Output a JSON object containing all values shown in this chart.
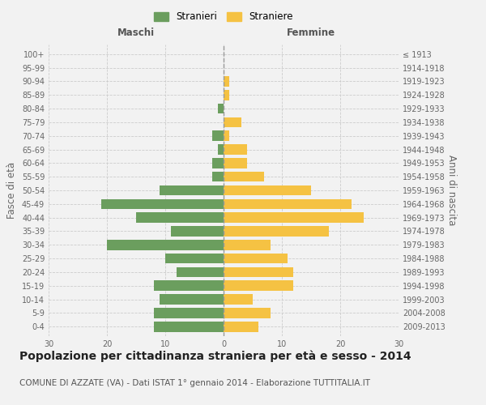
{
  "age_groups": [
    "0-4",
    "5-9",
    "10-14",
    "15-19",
    "20-24",
    "25-29",
    "30-34",
    "35-39",
    "40-44",
    "45-49",
    "50-54",
    "55-59",
    "60-64",
    "65-69",
    "70-74",
    "75-79",
    "80-84",
    "85-89",
    "90-94",
    "95-99",
    "100+"
  ],
  "birth_years": [
    "2009-2013",
    "2004-2008",
    "1999-2003",
    "1994-1998",
    "1989-1993",
    "1984-1988",
    "1979-1983",
    "1974-1978",
    "1969-1973",
    "1964-1968",
    "1959-1963",
    "1954-1958",
    "1949-1953",
    "1944-1948",
    "1939-1943",
    "1934-1938",
    "1929-1933",
    "1924-1928",
    "1919-1923",
    "1914-1918",
    "≤ 1913"
  ],
  "maschi": [
    12,
    12,
    11,
    12,
    8,
    10,
    20,
    9,
    15,
    21,
    11,
    2,
    2,
    1,
    2,
    0,
    1,
    0,
    0,
    0,
    0
  ],
  "femmine": [
    6,
    8,
    5,
    12,
    12,
    11,
    8,
    18,
    24,
    22,
    15,
    7,
    4,
    4,
    1,
    3,
    0,
    1,
    1,
    0,
    0
  ],
  "maschi_color": "#6b9e5e",
  "femmine_color": "#f5c243",
  "background_color": "#f2f2f2",
  "grid_color": "#cccccc",
  "bar_height": 0.75,
  "xlim": 30,
  "title": "Popolazione per cittadinanza straniera per età e sesso - 2014",
  "subtitle": "COMUNE DI AZZATE (VA) - Dati ISTAT 1° gennaio 2014 - Elaborazione TUTTITALIA.IT",
  "xlabel_left": "Maschi",
  "xlabel_right": "Femmine",
  "ylabel_left": "Fasce di età",
  "ylabel_right": "Anni di nascita",
  "legend_stranieri": "Stranieri",
  "legend_straniere": "Straniere",
  "title_fontsize": 10,
  "subtitle_fontsize": 7.5,
  "tick_fontsize": 7,
  "label_fontsize": 8.5
}
